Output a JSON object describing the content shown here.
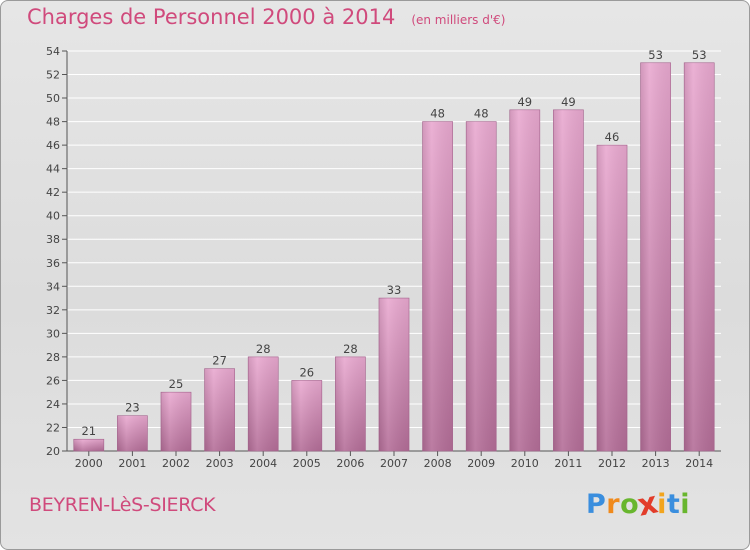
{
  "header": {
    "title": "Charges de Personnel 2000 à 2014",
    "subtitle": "(en milliers d'€)"
  },
  "footer": {
    "commune": "BEYREN-LèS-SIERCK",
    "logo_letters": [
      "P",
      "r",
      "o",
      "x",
      "i",
      "t",
      "i"
    ],
    "logo_colors": [
      "#3a8ede",
      "#f08a1c",
      "#68b62e",
      "#e23c2a",
      "#f2a51e",
      "#3a8ede",
      "#68b62e"
    ]
  },
  "colors": {
    "bar_light": "#e9a9d0",
    "bar_dark": "#b46e98",
    "title": "#d04a7c",
    "grid": "#ffffff",
    "text": "#444444"
  },
  "chart_data": {
    "type": "bar",
    "title": "Charges de Personnel 2000 à 2014",
    "subtitle": "(en milliers d'€)",
    "categories": [
      "2000",
      "2001",
      "2002",
      "2003",
      "2004",
      "2005",
      "2006",
      "2007",
      "2008",
      "2009",
      "2010",
      "2011",
      "2012",
      "2013",
      "2014"
    ],
    "values": [
      21,
      23,
      25,
      27,
      28,
      26,
      28,
      33,
      48,
      48,
      49,
      49,
      46,
      53,
      53
    ],
    "ylim": [
      20,
      54
    ],
    "yticks": [
      20,
      22,
      24,
      26,
      28,
      30,
      32,
      34,
      36,
      38,
      40,
      42,
      44,
      46,
      48,
      50,
      52,
      54
    ],
    "grid": true,
    "xlabel": "",
    "ylabel": ""
  }
}
